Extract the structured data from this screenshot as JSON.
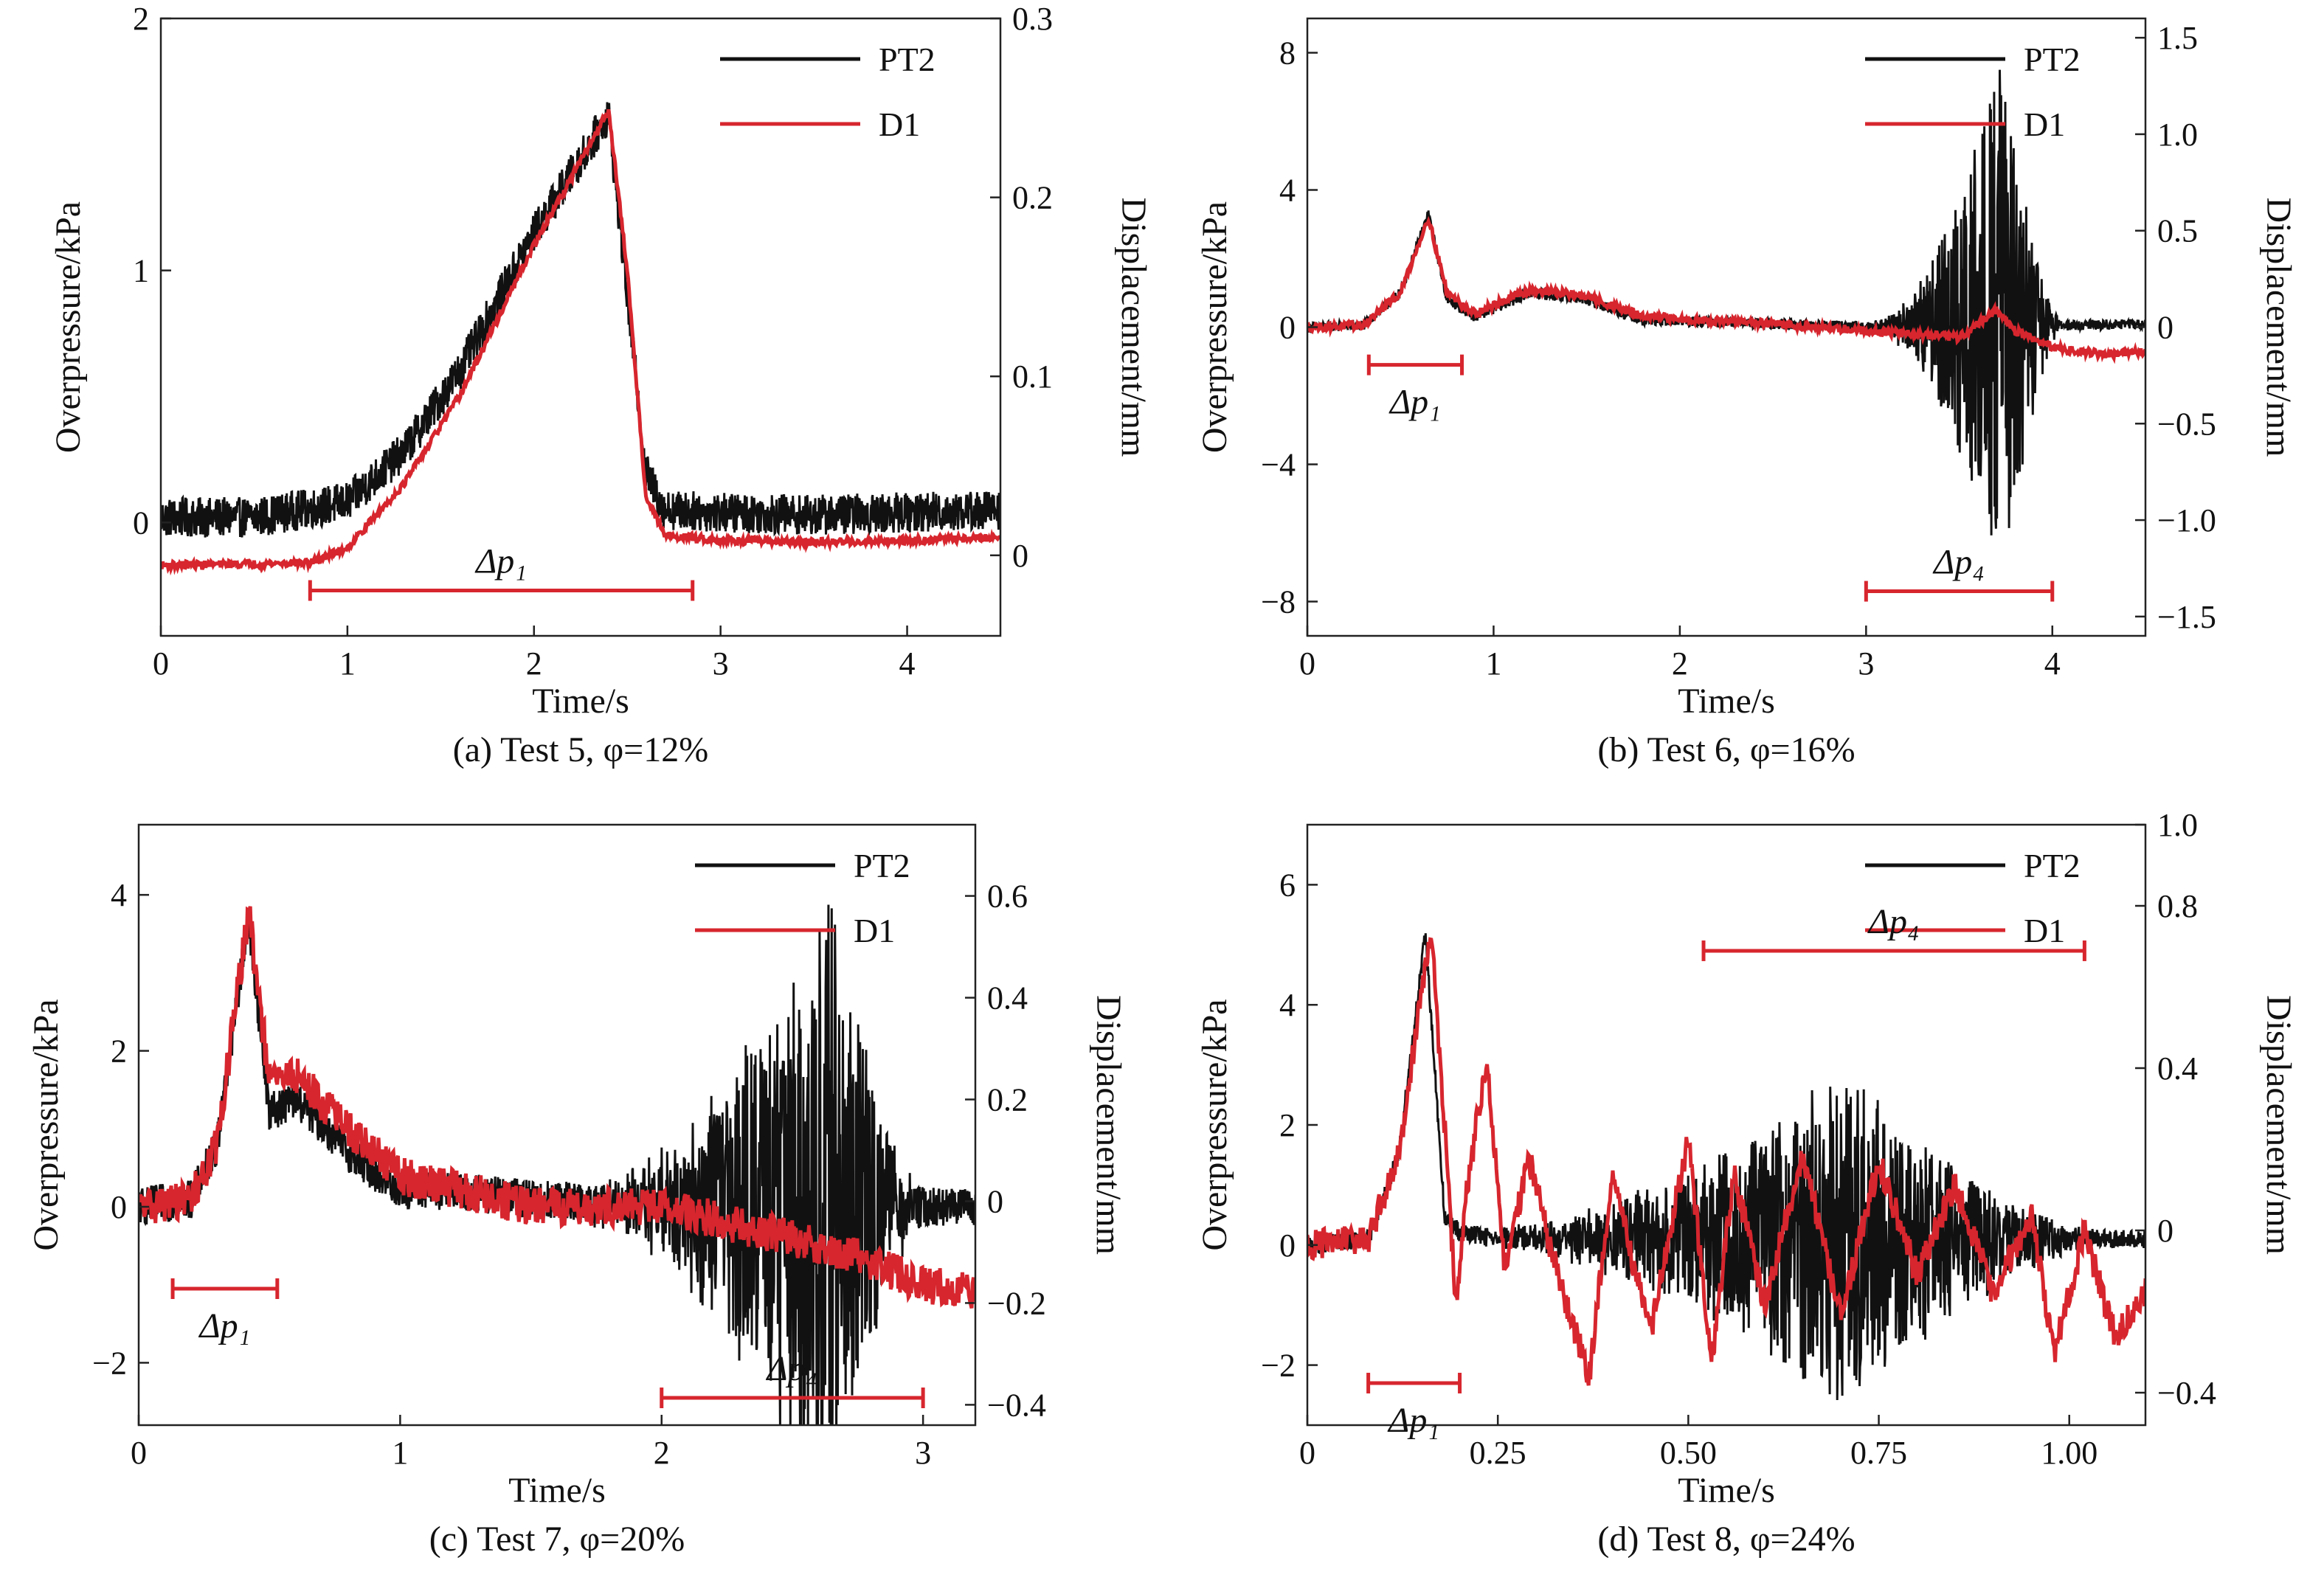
{
  "colors": {
    "pt2": "#111111",
    "d1": "#d7262e",
    "axis": "#222222"
  },
  "legend": [
    "PT2",
    "D1"
  ],
  "chart_data": [
    {
      "id": "a",
      "type": "line",
      "caption": "(a) Test 5, φ=12%",
      "xlabel": "Time/s",
      "ylabel": "Overpressure/kPa",
      "y2label": "Displacement/mm",
      "xlim": [
        0,
        4.5
      ],
      "ylim": [
        -0.45,
        2.0
      ],
      "y2lim": [
        -0.045,
        0.3
      ],
      "xticks": [
        "0",
        "1",
        "2",
        "3",
        "4"
      ],
      "yticks": [
        "0",
        "1",
        "2"
      ],
      "y2ticks": [
        "0",
        "0.1",
        "0.2",
        "0.3"
      ],
      "xtick_values": [
        0,
        1,
        2,
        3,
        4
      ],
      "ytick_values": [
        0,
        1,
        2
      ],
      "y2tick_values": [
        0,
        0.1,
        0.2,
        0.3
      ],
      "annotations": [
        {
          "label": "Δp₁",
          "x0": 0.8,
          "x1": 2.85,
          "y": -0.27
        }
      ],
      "series": [
        {
          "name": "PT2",
          "x": [
            0,
            0.5,
            1.0,
            1.3,
            1.6,
            2.0,
            2.3,
            2.4,
            2.5,
            2.6,
            2.7,
            3.0,
            3.5,
            4.0,
            4.5
          ],
          "y": [
            0.02,
            0.02,
            0.08,
            0.28,
            0.6,
            1.15,
            1.5,
            1.62,
            0.9,
            0.2,
            0.05,
            0.04,
            0.03,
            0.04,
            0.05
          ],
          "noise": 0.08
        },
        {
          "name": "D1",
          "x": [
            0,
            0.8,
            1.0,
            1.3,
            1.6,
            2.0,
            2.3,
            2.4,
            2.5,
            2.6,
            2.7,
            3.0,
            3.5,
            4.0,
            4.5
          ],
          "y": [
            -0.17,
            -0.16,
            -0.1,
            0.15,
            0.5,
            1.1,
            1.5,
            1.64,
            1.0,
            0.1,
            -0.05,
            -0.07,
            -0.08,
            -0.07,
            -0.06
          ],
          "noise": 0.015
        }
      ]
    },
    {
      "id": "b",
      "type": "line",
      "caption": "(b) Test 6, φ=16%",
      "xlabel": "Time/s",
      "ylabel": "Overpressure/kPa",
      "y2label": "Displacement/mm",
      "xlim": [
        0,
        4.5
      ],
      "ylim": [
        -9,
        9
      ],
      "y2lim": [
        -1.6,
        1.6
      ],
      "xticks": [
        "0",
        "1",
        "2",
        "3",
        "4"
      ],
      "yticks": [
        "−8",
        "−4",
        "0",
        "4",
        "8"
      ],
      "y2ticks": [
        "−1.5",
        "−1.0",
        "−0.5",
        "0",
        "0.5",
        "1.0",
        "1.5"
      ],
      "xtick_values": [
        0,
        1,
        2,
        3,
        4
      ],
      "ytick_values": [
        -8,
        -4,
        0,
        4,
        8
      ],
      "y2tick_values": [
        -1.5,
        -1.0,
        -0.5,
        0,
        0.5,
        1.0,
        1.5
      ],
      "annotations": [
        {
          "label": "Δp₁",
          "x0": 0.33,
          "x1": 0.83,
          "y": -1.1
        },
        {
          "label": "Δp₄",
          "x0": 3.0,
          "x1": 4.0,
          "y": -7.7
        }
      ],
      "series": [
        {
          "name": "PT2",
          "x": [
            0,
            0.3,
            0.5,
            0.65,
            0.75,
            0.9,
            1.2,
            1.5,
            1.8,
            2.5,
            3.0,
            3.3,
            3.5,
            3.7,
            3.8,
            3.9,
            4.1,
            4.5
          ],
          "y": [
            0,
            0.05,
            1.0,
            3.3,
            0.8,
            0.3,
            1.0,
            0.8,
            0.2,
            0.1,
            0.0,
            0.05,
            0.1,
            0.1,
            0.1,
            0.05,
            0.05,
            0.1
          ],
          "noise": 0.15,
          "burst": {
            "start": 3.0,
            "peak": 3.72,
            "end": 4.05,
            "amp": 8.0
          }
        },
        {
          "name": "D1",
          "x": [
            0,
            0.3,
            0.5,
            0.65,
            0.75,
            0.9,
            1.2,
            1.5,
            1.8,
            2.5,
            3.0,
            3.5,
            3.7,
            3.8,
            4.0,
            4.3,
            4.5
          ],
          "y": [
            0,
            0.05,
            1.0,
            3.2,
            1.0,
            0.4,
            1.1,
            0.9,
            0.3,
            0.1,
            -0.1,
            -0.3,
            0.5,
            -0.1,
            -0.6,
            -0.8,
            -0.7
          ],
          "noise": 0.12
        }
      ]
    },
    {
      "id": "c",
      "type": "line",
      "caption": "(c) Test 7, φ=20%",
      "xlabel": "Time/s",
      "ylabel": "Overpressure/kPa",
      "y2label": "Displacement/mm",
      "xlim": [
        0,
        3.2
      ],
      "ylim": [
        -2.8,
        4.9
      ],
      "y2lim": [
        -0.44,
        0.74
      ],
      "xticks": [
        "0",
        "1",
        "2",
        "3"
      ],
      "yticks": [
        "−2",
        "0",
        "2",
        "4"
      ],
      "y2ticks": [
        "−0.4",
        "−0.2",
        "0",
        "0.2",
        "0.4",
        "0.6"
      ],
      "xtick_values": [
        0,
        1,
        2,
        3
      ],
      "ytick_values": [
        -2,
        0,
        2,
        4
      ],
      "y2tick_values": [
        -0.4,
        -0.2,
        0,
        0.2,
        0.4,
        0.6
      ],
      "annotations": [
        {
          "label": "Δp₁",
          "x0": 0.13,
          "x1": 0.53,
          "y": -1.05
        },
        {
          "label": "Δp₄",
          "x0": 2.0,
          "x1": 3.0,
          "y": -2.45
        }
      ],
      "series": [
        {
          "name": "PT2",
          "x": [
            0,
            0.2,
            0.3,
            0.42,
            0.5,
            0.6,
            0.8,
            1.0,
            1.2,
            1.5,
            2.0,
            2.5,
            2.7,
            2.9,
            3.2
          ],
          "y": [
            0,
            0.1,
            0.8,
            3.7,
            1.2,
            1.4,
            0.7,
            0.2,
            0.2,
            0.1,
            0.0,
            0.0,
            0.0,
            0.0,
            0.0
          ],
          "noise": 0.25,
          "burst": {
            "start": 1.6,
            "peak": 2.65,
            "end": 3.0,
            "amp": 4.0
          }
        },
        {
          "name": "D1",
          "x": [
            0,
            0.2,
            0.3,
            0.42,
            0.5,
            0.6,
            0.8,
            1.0,
            1.5,
            2.0,
            2.5,
            2.8,
            3.0,
            3.2
          ],
          "y": [
            0,
            0.1,
            0.8,
            3.8,
            1.6,
            1.7,
            1.0,
            0.4,
            0.0,
            0.0,
            -0.4,
            -0.7,
            -1.0,
            -1.1
          ],
          "noise": 0.25
        }
      ]
    },
    {
      "id": "d",
      "type": "line",
      "caption": "(d) Test 8, φ=24%",
      "xlabel": "Time/s",
      "ylabel": "Overpressure/kPa",
      "y2label": "Displacement/mm",
      "xlim": [
        0,
        1.1
      ],
      "ylim": [
        -3.0,
        7.0
      ],
      "y2lim": [
        -0.48,
        1.0
      ],
      "xticks": [
        "0",
        "0.25",
        "0.50",
        "0.75",
        "1.00"
      ],
      "yticks": [
        "−2",
        "0",
        "2",
        "4",
        "6"
      ],
      "y2ticks": [
        "−0.4",
        "0",
        "0.4",
        "0.8",
        "1.0"
      ],
      "xtick_values": [
        0,
        0.25,
        0.5,
        0.75,
        1.0
      ],
      "ytick_values": [
        -2,
        0,
        2,
        4,
        6
      ],
      "y2tick_values": [
        -0.4,
        0,
        0.4,
        0.8,
        1.0
      ],
      "annotations": [
        {
          "label": "Δp₁",
          "x0": 0.08,
          "x1": 0.2,
          "y": -2.3
        },
        {
          "label": "Δp₄",
          "x0": 0.52,
          "x1": 1.02,
          "y": 4.9
        }
      ],
      "series": [
        {
          "name": "PT2",
          "x": [
            0,
            0.08,
            0.12,
            0.155,
            0.18,
            0.2,
            0.3,
            0.5,
            0.7,
            0.9,
            1.0,
            1.1
          ],
          "y": [
            0,
            0.1,
            1.5,
            5.2,
            0.5,
            0.2,
            0.1,
            0.1,
            0.1,
            0.1,
            0.1,
            0.1
          ],
          "noise": 0.15,
          "burst": {
            "start": 0.17,
            "peak": 0.7,
            "end": 1.05,
            "amp": 2.8
          }
        },
        {
          "name": "D1",
          "x": [
            0,
            0.08,
            0.12,
            0.162,
            0.18,
            0.195,
            0.21,
            0.235,
            0.26,
            0.29,
            0.33,
            0.37,
            0.4,
            0.45,
            0.5,
            0.53,
            0.56,
            0.6,
            0.65,
            0.7,
            0.75,
            0.8,
            0.85,
            0.9,
            0.95,
            0.98,
            1.02,
            1.06,
            1.1
          ],
          "y": [
            0,
            0.1,
            1.5,
            5.3,
            2.0,
            -1.0,
            1.0,
            3.1,
            -0.5,
            1.5,
            -0.6,
            -2.2,
            1.2,
            -1.5,
            1.8,
            -2.0,
            1.2,
            -1.0,
            1.5,
            -1.2,
            1.4,
            -0.5,
            1.0,
            -0.8,
            0.5,
            -1.8,
            0.2,
            -1.5,
            -0.8
          ],
          "noise": 0.25
        }
      ]
    }
  ]
}
